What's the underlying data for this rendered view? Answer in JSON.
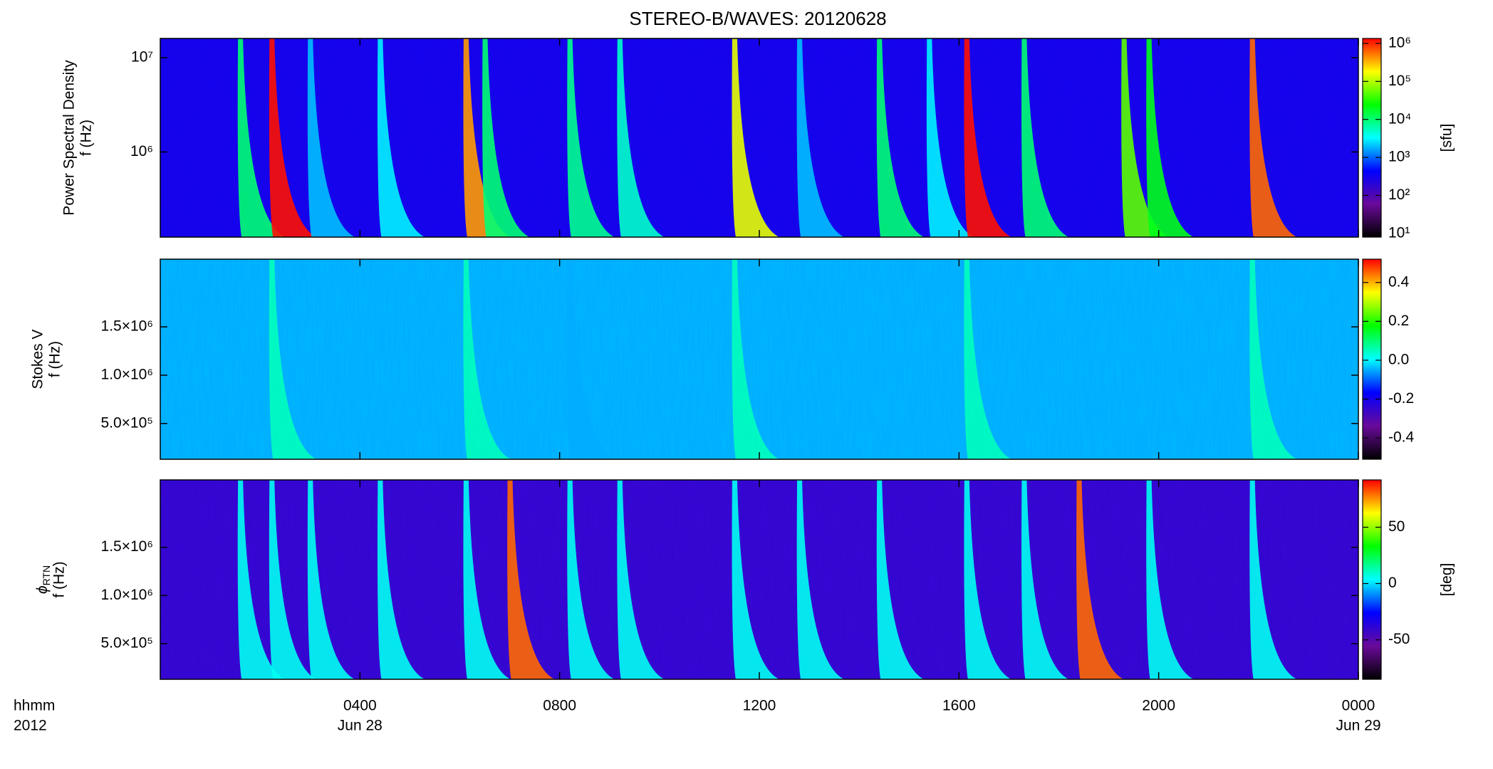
{
  "title": "STEREO-B/WAVES: 20120628",
  "colormap": [
    "#000000",
    "#6a0a9a",
    "#0000ff",
    "#00ffff",
    "#00ff00",
    "#ffff00",
    "#ff0000"
  ],
  "chart_data": [
    {
      "type": "heatmap",
      "y_label": "Power Spectral Density",
      "y_label_2": "f (Hz)",
      "y_log": true,
      "ylim": [
        125000,
        16000000
      ],
      "yticks": [
        {
          "value": 1000000,
          "label": "10⁶"
        },
        {
          "value": 10000000,
          "label": "10⁷"
        }
      ],
      "xlim": [
        0,
        24
      ],
      "background": 300,
      "color_log": true,
      "clim": [
        8,
        1350000
      ],
      "cticks": [
        {
          "value": 10,
          "label": "10¹"
        },
        {
          "value": 100,
          "label": "10²"
        },
        {
          "value": 1000,
          "label": "10³"
        },
        {
          "value": 10000,
          "label": "10⁴"
        },
        {
          "value": 100000,
          "label": "10⁵"
        },
        {
          "value": 1000000,
          "label": "10⁶"
        }
      ],
      "colorbar_label": "[sfu]",
      "bursts": {
        "times": [
          1.6,
          2.23,
          3.0,
          4.4,
          6.12,
          6.5,
          8.2,
          9.2,
          11.5,
          12.8,
          14.4,
          15.4,
          16.15,
          17.3,
          19.3,
          19.8,
          21.87
        ],
        "values": [
          10000,
          1200000,
          2000,
          3000,
          400000,
          10000,
          8000,
          5000,
          150000,
          2000,
          10000,
          3000,
          1200000,
          10000,
          50000,
          20000,
          600000
        ]
      }
    },
    {
      "type": "heatmap",
      "y_label": "Stokes V",
      "y_label_2": "f (Hz)",
      "y_log": false,
      "ylim": [
        130000,
        2200000
      ],
      "yticks": [
        {
          "value": 500000,
          "label": "5.0×10⁵"
        },
        {
          "value": 1000000,
          "label": "1.0×10⁶"
        },
        {
          "value": 1500000,
          "label": "1.5×10⁶"
        }
      ],
      "xlim": [
        0,
        24
      ],
      "background": -0.05,
      "color_log": false,
      "clim": [
        -0.51,
        0.52
      ],
      "cticks": [
        -0.4,
        -0.2,
        {
          "value": 0,
          "label": "0.0"
        },
        0.2,
        0.4
      ],
      "bursts": {
        "times": [
          2.23,
          6.12,
          8.2,
          11.5,
          16.15,
          21.87
        ],
        "values": [
          0.05,
          0.05,
          -0.05,
          0.05,
          0.05,
          0.05
        ]
      }
    },
    {
      "type": "heatmap",
      "y_label": "ϕ",
      "y_label_sub": "RTN",
      "y_label_2": "f (Hz)",
      "y_log": false,
      "ylim": [
        130000,
        2200000
      ],
      "yticks": [
        {
          "value": 500000,
          "label": "5.0×10⁵"
        },
        {
          "value": 1000000,
          "label": "1.0×10⁶"
        },
        {
          "value": 1500000,
          "label": "1.5×10⁶"
        }
      ],
      "xlim": [
        0,
        24
      ],
      "background": -40,
      "color_log": false,
      "clim": [
        -85,
        92
      ],
      "cticks": [
        -50,
        0,
        50
      ],
      "colorbar_label": "[deg]",
      "bursts": {
        "times": [
          1.6,
          2.23,
          3.0,
          4.4,
          6.12,
          7.0,
          8.2,
          9.2,
          11.5,
          12.8,
          14.4,
          16.15,
          17.3,
          18.4,
          19.8,
          21.87
        ],
        "values": [
          5,
          5,
          5,
          5,
          5,
          80,
          5,
          5,
          5,
          5,
          5,
          5,
          5,
          80,
          5,
          5
        ]
      },
      "xticks": [
        {
          "value": 4,
          "label": "0400"
        },
        {
          "value": 8,
          "label": "0800"
        },
        {
          "value": 12,
          "label": "1200"
        },
        {
          "value": 16,
          "label": "1600"
        },
        {
          "value": 20,
          "label": "2000"
        },
        {
          "value": 24,
          "label": "0000"
        }
      ],
      "x_sublabels": [
        {
          "value": 4,
          "label": "Jun 28"
        },
        {
          "value": 24,
          "label": "Jun 29"
        }
      ],
      "x_label": "hhmm",
      "x_label_2": "2012"
    }
  ]
}
